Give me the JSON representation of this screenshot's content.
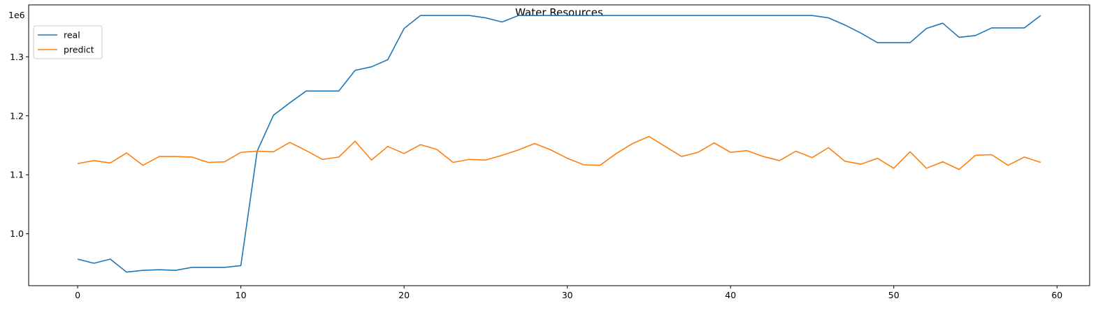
{
  "chart_data": {
    "type": "line",
    "title": "Water Resources",
    "xlabel": "",
    "ylabel": "",
    "offset_text": "1e6",
    "xlim": [
      -3,
      62
    ],
    "ylim": [
      912000,
      1388000
    ],
    "xticks": [
      0,
      10,
      20,
      30,
      40,
      50,
      60
    ],
    "yticks": [
      1000000,
      1100000,
      1200000,
      1300000
    ],
    "ytick_labels": [
      "1.0",
      "1.1",
      "1.2",
      "1.3"
    ],
    "legend": {
      "position": "top-left"
    },
    "grid": false,
    "x": [
      0,
      1,
      2,
      3,
      4,
      5,
      6,
      7,
      8,
      9,
      10,
      11,
      12,
      13,
      14,
      15,
      16,
      17,
      18,
      19,
      20,
      21,
      22,
      23,
      24,
      25,
      26,
      27,
      28,
      29,
      30,
      31,
      32,
      33,
      34,
      35,
      36,
      37,
      38,
      39,
      40,
      41,
      42,
      43,
      44,
      45,
      46,
      47,
      48,
      49,
      50,
      51,
      52,
      53,
      54,
      55,
      56,
      57,
      58,
      59
    ],
    "series": [
      {
        "name": "real",
        "color": "#1f77b4",
        "values": [
          957000,
          950000,
          957000,
          935000,
          938000,
          939000,
          938000,
          943000,
          943000,
          943000,
          946000,
          1140000,
          1201000,
          1222000,
          1242000,
          1242000,
          1242000,
          1277000,
          1283000,
          1295000,
          1348000,
          1370000,
          1370000,
          1370000,
          1370000,
          1366000,
          1359000,
          1370000,
          1370000,
          1370000,
          1370000,
          1370000,
          1370000,
          1370000,
          1370000,
          1370000,
          1370000,
          1370000,
          1370000,
          1370000,
          1370000,
          1370000,
          1370000,
          1370000,
          1370000,
          1370000,
          1366000,
          1354000,
          1340000,
          1324000,
          1324000,
          1324000,
          1348000,
          1357000,
          1333000,
          1336000,
          1349000,
          1349000,
          1349000,
          1370000
        ]
      },
      {
        "name": "predict",
        "color": "#ff7f0e",
        "values": [
          1119000,
          1124000,
          1120000,
          1137000,
          1116000,
          1131000,
          1131000,
          1130000,
          1121000,
          1122000,
          1138000,
          1140000,
          1139000,
          1155000,
          1141000,
          1126000,
          1130000,
          1157000,
          1125000,
          1148000,
          1136000,
          1151000,
          1143000,
          1121000,
          1126000,
          1125000,
          1133000,
          1142000,
          1153000,
          1142000,
          1128000,
          1117000,
          1116000,
          1136000,
          1153000,
          1165000,
          1148000,
          1131000,
          1138000,
          1154000,
          1138000,
          1141000,
          1131000,
          1124000,
          1140000,
          1129000,
          1146000,
          1123000,
          1118000,
          1128000,
          1111000,
          1139000,
          1111000,
          1122000,
          1109000,
          1133000,
          1134000,
          1116000,
          1130000,
          1121000
        ]
      }
    ]
  }
}
